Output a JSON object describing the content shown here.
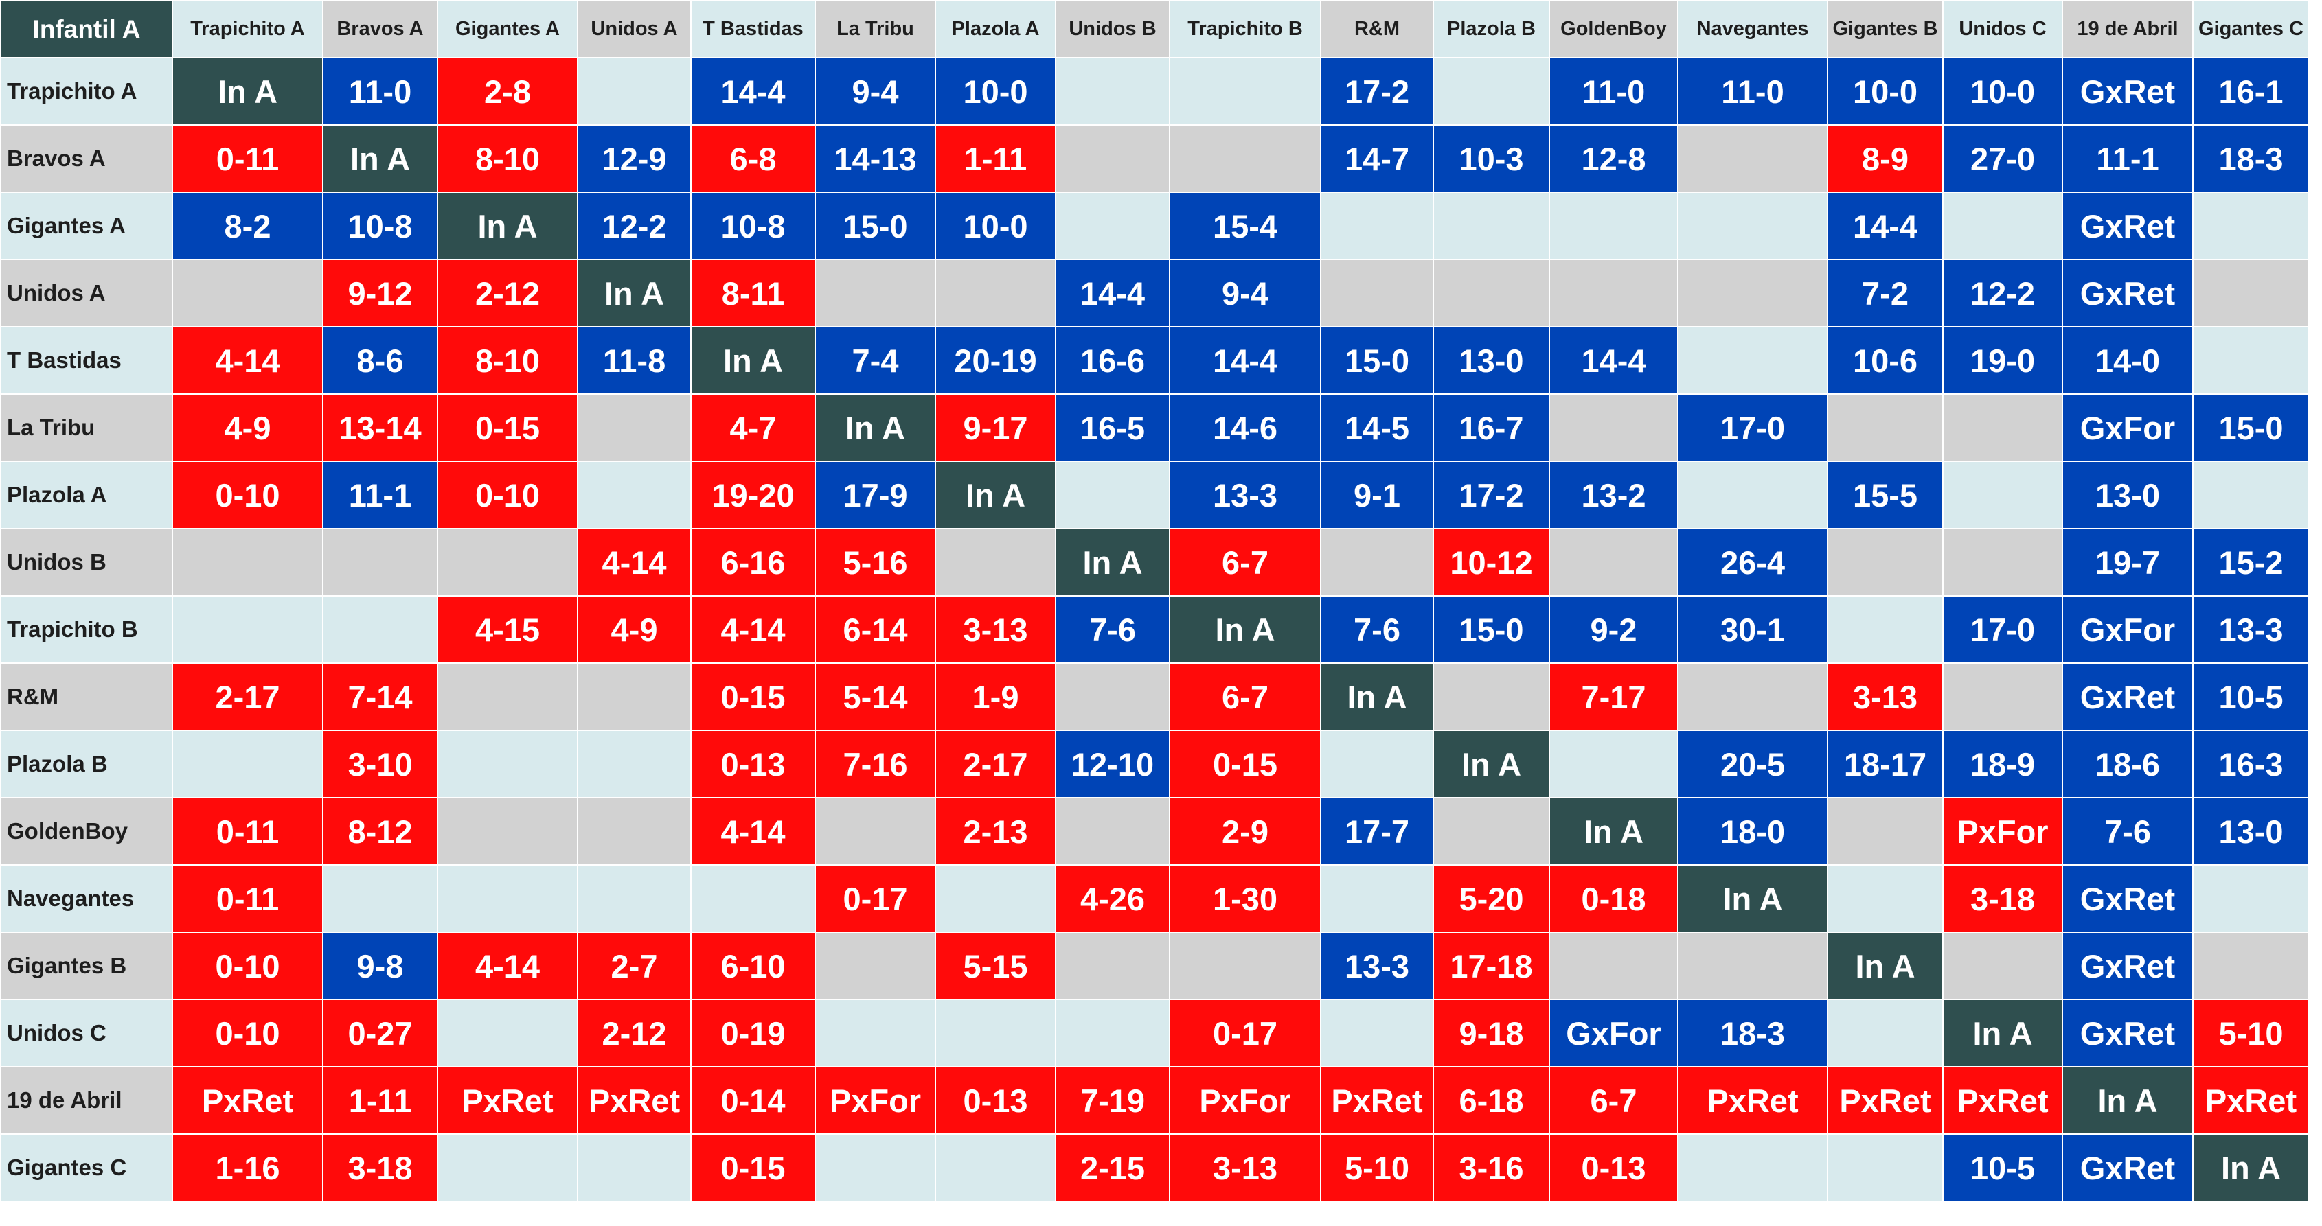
{
  "table": {
    "corner_label": "Infantil A",
    "columns": [
      "Trapichito A",
      "Bravos A",
      "Gigantes A",
      "Unidos A",
      "T Bastidas",
      "La Tribu",
      "Plazola A",
      "Unidos B",
      "Trapichito B",
      "R&M",
      "Plazola B",
      "GoldenBoy",
      "Navegantes",
      "Gigantes B",
      "Unidos C",
      "19 de Abril",
      "Gigantes C"
    ],
    "rows": [
      {
        "team": "Trapichito A",
        "cells": [
          "In A",
          "11-0",
          "2-8",
          "",
          "14-4",
          "9-4",
          "10-0",
          "",
          "",
          "17-2",
          "",
          "11-0",
          "11-0",
          "10-0",
          "10-0",
          "GxRet",
          "16-1"
        ],
        "status": [
          "s",
          "w",
          "l",
          "",
          "w",
          "w",
          "w",
          "",
          "",
          "w",
          "",
          "w",
          "w",
          "w",
          "w",
          "w",
          "w"
        ]
      },
      {
        "team": "Bravos A",
        "cells": [
          "0-11",
          "In A",
          "8-10",
          "12-9",
          "6-8",
          "14-13",
          "1-11",
          "",
          "",
          "14-7",
          "10-3",
          "12-8",
          "",
          "8-9",
          "27-0",
          "11-1",
          "18-3"
        ],
        "status": [
          "l",
          "s",
          "l",
          "w",
          "l",
          "w",
          "l",
          "",
          "",
          "w",
          "w",
          "w",
          "",
          "l",
          "w",
          "w",
          "w"
        ]
      },
      {
        "team": "Gigantes A",
        "cells": [
          "8-2",
          "10-8",
          "In A",
          "12-2",
          "10-8",
          "15-0",
          "10-0",
          "",
          "15-4",
          "",
          "",
          "",
          "",
          "14-4",
          "",
          "GxRet",
          ""
        ],
        "status": [
          "w",
          "w",
          "s",
          "w",
          "w",
          "w",
          "w",
          "",
          "w",
          "",
          "",
          "",
          "",
          "w",
          "",
          "w",
          ""
        ]
      },
      {
        "team": "Unidos A",
        "cells": [
          "",
          "9-12",
          "2-12",
          "In A",
          "8-11",
          "",
          "",
          "14-4",
          "9-4",
          "",
          "",
          "",
          "",
          "7-2",
          "12-2",
          "GxRet",
          ""
        ],
        "status": [
          "",
          "l",
          "l",
          "s",
          "l",
          "",
          "",
          "w",
          "w",
          "",
          "",
          "",
          "",
          "w",
          "w",
          "w",
          ""
        ]
      },
      {
        "team": "T Bastidas",
        "cells": [
          "4-14",
          "8-6",
          "8-10",
          "11-8",
          "In A",
          "7-4",
          "20-19",
          "16-6",
          "14-4",
          "15-0",
          "13-0",
          "14-4",
          "",
          "10-6",
          "19-0",
          "14-0",
          ""
        ],
        "status": [
          "l",
          "w",
          "l",
          "w",
          "s",
          "w",
          "w",
          "w",
          "w",
          "w",
          "w",
          "w",
          "",
          "w",
          "w",
          "w",
          ""
        ]
      },
      {
        "team": "La Tribu",
        "cells": [
          "4-9",
          "13-14",
          "0-15",
          "",
          "4-7",
          "In A",
          "9-17",
          "16-5",
          "14-6",
          "14-5",
          "16-7",
          "",
          "17-0",
          "",
          "",
          "GxFor",
          "15-0"
        ],
        "status": [
          "l",
          "l",
          "l",
          "",
          "l",
          "s",
          "l",
          "w",
          "w",
          "w",
          "w",
          "",
          "w",
          "",
          "",
          "w",
          "w"
        ]
      },
      {
        "team": "Plazola A",
        "cells": [
          "0-10",
          "11-1",
          "0-10",
          "",
          "19-20",
          "17-9",
          "In A",
          "",
          "13-3",
          "9-1",
          "17-2",
          "13-2",
          "",
          "15-5",
          "",
          "13-0",
          ""
        ],
        "status": [
          "l",
          "w",
          "l",
          "",
          "l",
          "w",
          "s",
          "",
          "w",
          "w",
          "w",
          "w",
          "",
          "w",
          "",
          "w",
          ""
        ]
      },
      {
        "team": "Unidos B",
        "cells": [
          "",
          "",
          "",
          "4-14",
          "6-16",
          "5-16",
          "",
          "In A",
          "6-7",
          "",
          "10-12",
          "",
          "26-4",
          "",
          "",
          "19-7",
          "15-2"
        ],
        "status": [
          "",
          "",
          "",
          "l",
          "l",
          "l",
          "",
          "s",
          "l",
          "",
          "l",
          "",
          "w",
          "",
          "",
          "w",
          "w"
        ]
      },
      {
        "team": "Trapichito B",
        "cells": [
          "",
          "",
          "4-15",
          "4-9",
          "4-14",
          "6-14",
          "3-13",
          "7-6",
          "In A",
          "7-6",
          "15-0",
          "9-2",
          "30-1",
          "",
          "17-0",
          "GxFor",
          "13-3"
        ],
        "status": [
          "",
          "",
          "l",
          "l",
          "l",
          "l",
          "l",
          "w",
          "s",
          "w",
          "w",
          "w",
          "w",
          "",
          "w",
          "w",
          "w"
        ]
      },
      {
        "team": "R&M",
        "cells": [
          "2-17",
          "7-14",
          "",
          "",
          "0-15",
          "5-14",
          "1-9",
          "",
          "6-7",
          "In A",
          "",
          "7-17",
          "",
          "3-13",
          "",
          "GxRet",
          "10-5"
        ],
        "status": [
          "l",
          "l",
          "",
          "",
          "l",
          "l",
          "l",
          "",
          "l",
          "s",
          "",
          "l",
          "",
          "l",
          "",
          "w",
          "w"
        ]
      },
      {
        "team": "Plazola B",
        "cells": [
          "",
          "3-10",
          "",
          "",
          "0-13",
          "7-16",
          "2-17",
          "12-10",
          "0-15",
          "",
          "In A",
          "",
          "20-5",
          "18-17",
          "18-9",
          "18-6",
          "16-3"
        ],
        "status": [
          "",
          "l",
          "",
          "",
          "l",
          "l",
          "l",
          "w",
          "l",
          "",
          "s",
          "",
          "w",
          "w",
          "w",
          "w",
          "w"
        ]
      },
      {
        "team": "GoldenBoy",
        "cells": [
          "0-11",
          "8-12",
          "",
          "",
          "4-14",
          "",
          "2-13",
          "",
          "2-9",
          "17-7",
          "",
          "In A",
          "18-0",
          "",
          "PxFor",
          "7-6",
          "13-0"
        ],
        "status": [
          "l",
          "l",
          "",
          "",
          "l",
          "",
          "l",
          "",
          "l",
          "w",
          "",
          "s",
          "w",
          "",
          "l",
          "w",
          "w"
        ]
      },
      {
        "team": "Navegantes",
        "cells": [
          "0-11",
          "",
          "",
          "",
          "",
          "0-17",
          "",
          "4-26",
          "1-30",
          "",
          "5-20",
          "0-18",
          "In A",
          "",
          "3-18",
          "GxRet",
          ""
        ],
        "status": [
          "l",
          "",
          "",
          "",
          "",
          "l",
          "",
          "l",
          "l",
          "",
          "l",
          "l",
          "s",
          "",
          "l",
          "w",
          ""
        ]
      },
      {
        "team": "Gigantes B",
        "cells": [
          "0-10",
          "9-8",
          "4-14",
          "2-7",
          "6-10",
          "",
          "5-15",
          "",
          "",
          "13-3",
          "17-18",
          "",
          "",
          "In A",
          "",
          "GxRet",
          ""
        ],
        "status": [
          "l",
          "w",
          "l",
          "l",
          "l",
          "",
          "l",
          "",
          "",
          "w",
          "l",
          "",
          "",
          "s",
          "",
          "w",
          ""
        ]
      },
      {
        "team": "Unidos C",
        "cells": [
          "0-10",
          "0-27",
          "",
          "2-12",
          "0-19",
          "",
          "",
          "",
          "0-17",
          "",
          "9-18",
          "GxFor",
          "18-3",
          "",
          "In A",
          "GxRet",
          "5-10"
        ],
        "status": [
          "l",
          "l",
          "",
          "l",
          "l",
          "",
          "",
          "",
          "l",
          "",
          "l",
          "w",
          "w",
          "",
          "s",
          "w",
          "l"
        ]
      },
      {
        "team": "19 de Abril",
        "cells": [
          "PxRet",
          "1-11",
          "PxRet",
          "PxRet",
          "0-14",
          "PxFor",
          "0-13",
          "7-19",
          "PxFor",
          "PxRet",
          "6-18",
          "6-7",
          "PxRet",
          "PxRet",
          "PxRet",
          "In A",
          "PxRet"
        ],
        "status": [
          "l",
          "l",
          "l",
          "l",
          "l",
          "l",
          "l",
          "l",
          "l",
          "l",
          "l",
          "l",
          "l",
          "l",
          "l",
          "s",
          "l"
        ]
      },
      {
        "team": "Gigantes C",
        "cells": [
          "1-16",
          "3-18",
          "",
          "",
          "0-15",
          "",
          "",
          "2-15",
          "3-13",
          "5-10",
          "3-16",
          "0-13",
          "",
          "",
          "10-5",
          "GxRet",
          "In A"
        ],
        "status": [
          "l",
          "l",
          "",
          "",
          "l",
          "",
          "",
          "l",
          "l",
          "l",
          "l",
          "l",
          "",
          "",
          "w",
          "w",
          "s"
        ]
      }
    ]
  },
  "colors": {
    "win": "#0044b6",
    "loss": "#ff0a0a",
    "self": "#2f4f4f",
    "light_bg": "#d8eaed",
    "gray_bg": "#d2d2d2",
    "header_text": "#1e1e1e",
    "cell_text": "#ffffff"
  }
}
